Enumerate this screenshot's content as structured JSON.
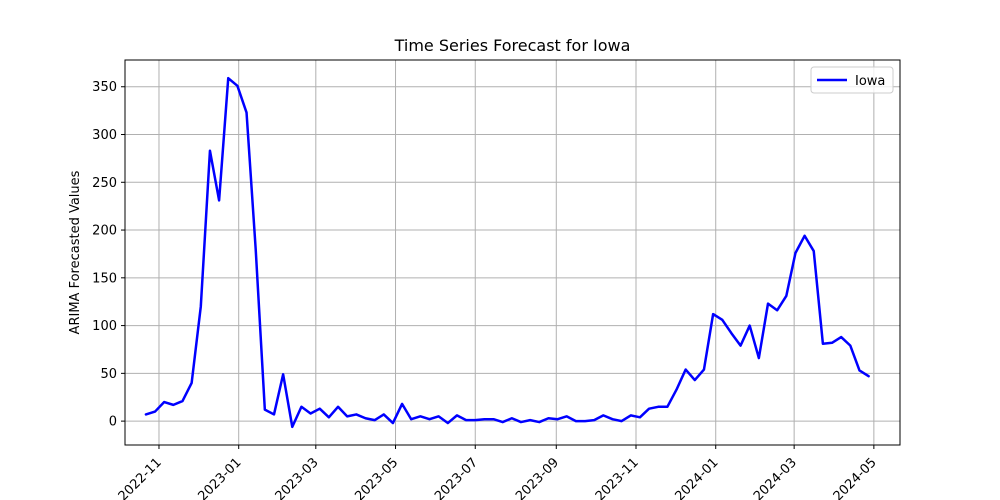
{
  "chart_data": {
    "type": "line",
    "title": "Time Series Forecast for Iowa",
    "xlabel": "",
    "ylabel": "ARIMA Forecasted Values",
    "grid": true,
    "legend_position": "top-right",
    "xlim": [
      "2022-10-06",
      "2024-05-21"
    ],
    "ylim": [
      -25,
      378
    ],
    "x_ticks": [
      "2022-11",
      "2023-01",
      "2023-03",
      "2023-05",
      "2023-07",
      "2023-09",
      "2023-11",
      "2024-01",
      "2024-03",
      "2024-05"
    ],
    "y_ticks": [
      0,
      50,
      100,
      150,
      200,
      250,
      300,
      350
    ],
    "series": [
      {
        "name": "Iowa",
        "color": "#0000ff",
        "x": [
          "2022-10-22",
          "2022-10-29",
          "2022-11-05",
          "2022-11-12",
          "2022-11-19",
          "2022-11-26",
          "2022-12-03",
          "2022-12-10",
          "2022-12-17",
          "2022-12-24",
          "2022-12-31",
          "2023-01-07",
          "2023-01-14",
          "2023-01-21",
          "2023-01-28",
          "2023-02-04",
          "2023-02-11",
          "2023-02-18",
          "2023-02-25",
          "2023-03-04",
          "2023-03-11",
          "2023-03-18",
          "2023-03-25",
          "2023-04-01",
          "2023-04-08",
          "2023-04-15",
          "2023-04-22",
          "2023-04-29",
          "2023-05-06",
          "2023-05-13",
          "2023-05-20",
          "2023-05-27",
          "2023-06-03",
          "2023-06-10",
          "2023-06-17",
          "2023-06-24",
          "2023-07-01",
          "2023-07-08",
          "2023-07-15",
          "2023-07-22",
          "2023-07-29",
          "2023-08-05",
          "2023-08-12",
          "2023-08-19",
          "2023-08-26",
          "2023-09-02",
          "2023-09-09",
          "2023-09-16",
          "2023-09-23",
          "2023-09-30",
          "2023-10-07",
          "2023-10-14",
          "2023-10-21",
          "2023-10-28",
          "2023-11-04",
          "2023-11-11",
          "2023-11-18",
          "2023-11-25",
          "2023-12-02",
          "2023-12-09",
          "2023-12-16",
          "2023-12-23",
          "2023-12-30",
          "2024-01-06",
          "2024-01-13",
          "2024-01-20",
          "2024-01-27",
          "2024-02-03",
          "2024-02-10",
          "2024-02-17",
          "2024-02-24",
          "2024-03-02",
          "2024-03-09",
          "2024-03-16",
          "2024-03-23",
          "2024-03-30",
          "2024-04-06",
          "2024-04-13",
          "2024-04-20",
          "2024-04-27"
        ],
        "values": [
          7,
          10,
          20,
          17,
          21,
          40,
          120,
          283,
          231,
          359,
          351,
          323,
          180,
          12,
          7,
          49,
          -6,
          15,
          8,
          13,
          4,
          15,
          5,
          7,
          3,
          1,
          7,
          -2,
          18,
          2,
          5,
          2,
          5,
          -2,
          6,
          1,
          1,
          2,
          2,
          -1,
          3,
          -1,
          1,
          -1,
          3,
          2,
          5,
          0,
          0,
          1,
          6,
          2,
          0,
          6,
          4,
          13,
          15,
          15,
          33,
          54,
          43,
          54,
          112,
          106,
          92,
          79,
          100,
          66,
          123,
          116,
          131,
          176,
          194,
          178,
          81,
          82,
          88,
          79,
          53,
          47
        ]
      }
    ]
  }
}
